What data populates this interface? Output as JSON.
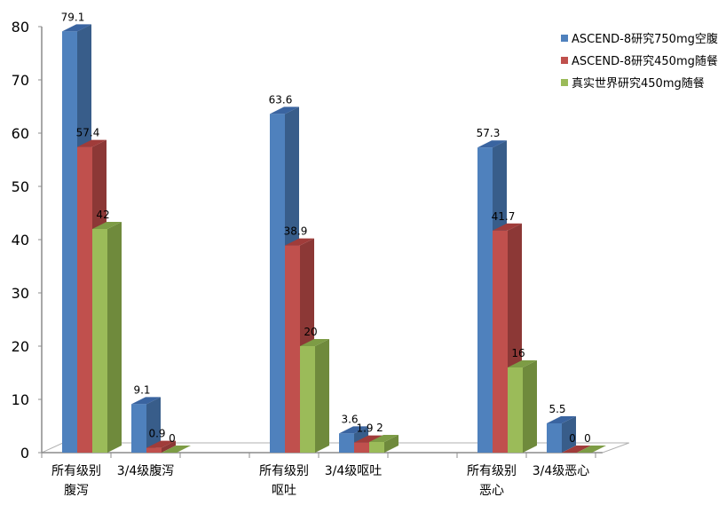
{
  "chart_data": {
    "type": "bar",
    "title": "",
    "xlabel": "",
    "ylabel": "",
    "ylim": [
      0,
      80
    ],
    "yticks": [
      0,
      10,
      20,
      30,
      40,
      50,
      60,
      70,
      80
    ],
    "grid": false,
    "three_d": true,
    "legend_position": "top-right",
    "categories": [
      "所有级别\n腹泻",
      "3/4级腹泻",
      "",
      "所有级别\n呕吐",
      "3/4级呕吐",
      "",
      "所有级别\n恶心",
      "3/4级恶心"
    ],
    "category_labels": [
      {
        "line1": "所有级别",
        "line2": "腹泻"
      },
      {
        "line1": "3/4级腹泻",
        "line2": ""
      },
      {
        "line1": "",
        "line2": ""
      },
      {
        "line1": "所有级别",
        "line2": "呕吐"
      },
      {
        "line1": "3/4级呕吐",
        "line2": ""
      },
      {
        "line1": "",
        "line2": ""
      },
      {
        "line1": "所有级别",
        "line2": "恶心"
      },
      {
        "line1": "3/4级恶心",
        "line2": ""
      }
    ],
    "series": [
      {
        "name": "ASCEND-8研究750mg空腹",
        "color": "#4f81bd",
        "side": "#385d8a",
        "top": "#3a64a0",
        "values": [
          79.1,
          9.1,
          null,
          63.6,
          3.6,
          null,
          57.3,
          5.5
        ]
      },
      {
        "name": "ASCEND-8研究450mg随餐",
        "color": "#c0504d",
        "side": "#8c3836",
        "top": "#a03c3a",
        "values": [
          57.4,
          0.9,
          null,
          38.9,
          1.9,
          null,
          41.7,
          0
        ]
      },
      {
        "name": "真实世界研究450mg随餐",
        "color": "#9bbb59",
        "side": "#6f8a3c",
        "top": "#7d9c45",
        "values": [
          42,
          0,
          null,
          20,
          2,
          null,
          16,
          0
        ]
      }
    ]
  },
  "legend": {
    "items": [
      {
        "label": "ASCEND-8研究750mg空腹",
        "color": "#4f81bd"
      },
      {
        "label": "ASCEND-8研究450mg随餐",
        "color": "#c0504d"
      },
      {
        "label": "真实世界研究450mg随餐",
        "color": "#9bbb59"
      }
    ]
  }
}
